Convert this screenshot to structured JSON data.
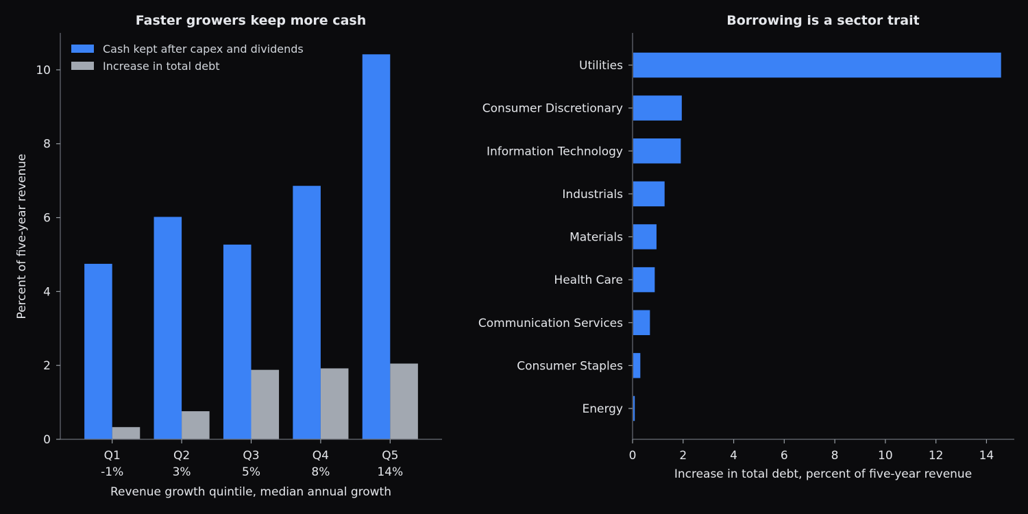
{
  "colors": {
    "background": "#0b0b0d",
    "text": "#e5e7eb",
    "cash": "#3b82f6",
    "debt": "#a2a8b1",
    "axis": "#6b6f78"
  },
  "chart_data": [
    {
      "type": "bar",
      "title": "Faster growers keep more cash",
      "xlabel": "Revenue growth quintile, median annual growth",
      "ylabel": "Percent of five-year revenue",
      "categories": [
        "Q1",
        "Q2",
        "Q3",
        "Q4",
        "Q5"
      ],
      "category_sublabels": [
        "-1%",
        "3%",
        "5%",
        "8%",
        "14%"
      ],
      "ylim": [
        0,
        11
      ],
      "yticks": [
        0,
        2,
        4,
        6,
        8,
        10
      ],
      "legend_position": "upper-left",
      "grid": false,
      "series": [
        {
          "name": "Cash kept after capex and dividends",
          "color": "#3b82f6",
          "values": [
            4.75,
            6.02,
            5.27,
            6.86,
            10.42
          ]
        },
        {
          "name": "Increase in total debt",
          "color": "#a2a8b1",
          "values": [
            0.33,
            0.76,
            1.88,
            1.92,
            2.05
          ]
        }
      ]
    },
    {
      "type": "bar",
      "orientation": "horizontal",
      "title": "Borrowing is a sector trait",
      "xlabel": "Increase in total debt, percent of five-year revenue",
      "ylabel": "",
      "categories": [
        "Utilities",
        "Consumer Discretionary",
        "Information Technology",
        "Industrials",
        "Materials",
        "Health Care",
        "Communication Services",
        "Consumer Staples",
        "Energy"
      ],
      "values": [
        14.55,
        1.92,
        1.88,
        1.24,
        0.92,
        0.85,
        0.66,
        0.28,
        0.06
      ],
      "xlim": [
        0,
        15.1
      ],
      "xticks": [
        0,
        2,
        4,
        6,
        8,
        10,
        12,
        14
      ],
      "color": "#3b82f6",
      "grid": false
    }
  ]
}
